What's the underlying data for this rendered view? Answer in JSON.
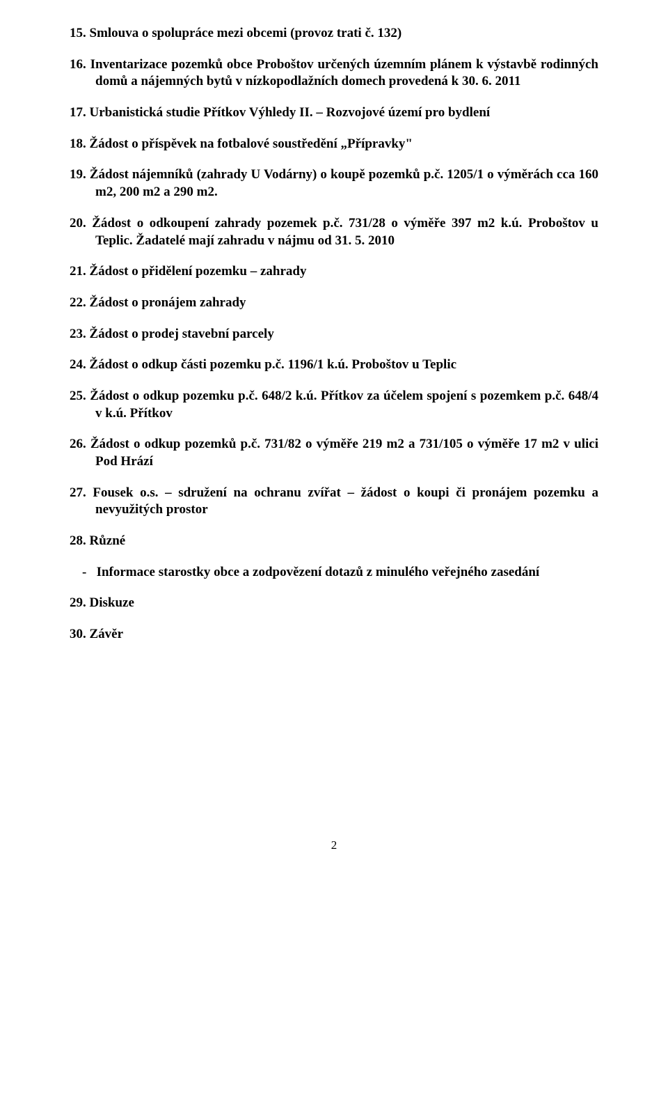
{
  "items": [
    "15. Smlouva o spolupráce mezi obcemi (provoz trati č. 132)",
    "16. Inventarizace pozemků obce Proboštov určených územním plánem k výstavbě rodinných domů a nájemných bytů v nízkopodlažních domech provedená k 30. 6. 2011",
    "17. Urbanistická studie Přítkov Výhledy II. – Rozvojové území pro bydlení",
    "18. Žádost o příspěvek na fotbalové soustředění „Přípravky\"",
    "19. Žádost nájemníků (zahrady U Vodárny) o koupě pozemků p.č. 1205/1 o výměrách cca 160 m2, 200 m2 a 290 m2.",
    "20. Žádost o odkoupení zahrady pozemek p.č. 731/28 o výměře 397 m2 k.ú. Proboštov u Teplic. Žadatelé mají zahradu v nájmu od 31. 5. 2010",
    "21. Žádost o přidělení pozemku – zahrady",
    "22. Žádost o pronájem zahrady",
    "23. Žádost o prodej stavební parcely",
    "24. Žádost o odkup části pozemku p.č. 1196/1 k.ú. Proboštov u Teplic",
    "25. Žádost o odkup pozemku p.č. 648/2 k.ú. Přítkov za účelem spojení s pozemkem p.č. 648/4 v k.ú. Přítkov",
    "26. Žádost o odkup pozemků p.č. 731/82 o výměře 219 m2 a 731/105 o výměře 17 m2 v ulici Pod Hrází",
    "27. Fousek o.s. – sdružení na ochranu zvířat – žádost o koupi či pronájem pozemku a nevyužitých prostor",
    "28. Různé"
  ],
  "dash_item": "Informace starostky obce a zodpovězení dotazů z minulého veřejného zasedání",
  "items_after": [
    "29. Diskuze",
    "30. Závěr"
  ],
  "page_number": "2",
  "dash": "-"
}
